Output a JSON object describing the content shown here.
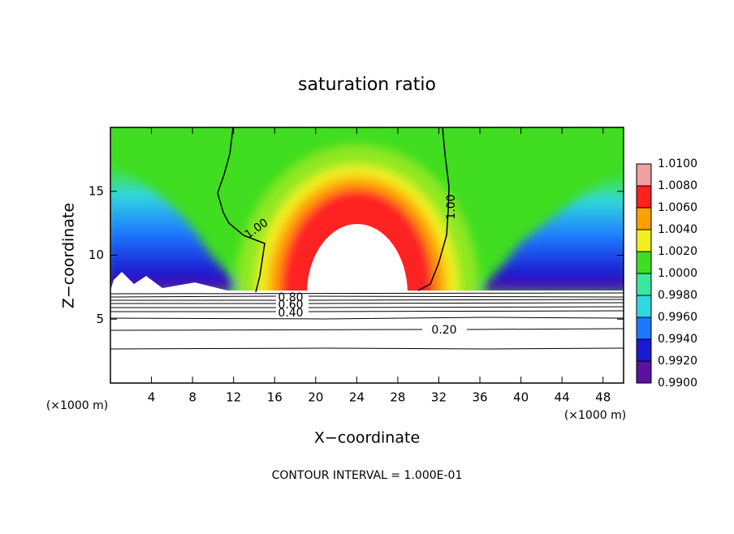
{
  "chart_data": {
    "type": "contour",
    "title": "saturation ratio",
    "x_label": "X−coordinate",
    "y_label": "Z−coordinate",
    "x_unit": "(×1000 m)",
    "y_unit": "(×1000 m)",
    "footer": "CONTOUR INTERVAL = 1.000E-01",
    "xlim": [
      0,
      50
    ],
    "ylim": [
      0,
      20
    ],
    "xticks": [
      4,
      8,
      12,
      16,
      20,
      24,
      28,
      32,
      36,
      40,
      44,
      48
    ],
    "yticks": [
      5,
      10,
      15
    ],
    "contour_labels": [
      "1.00",
      "1.00",
      "0.80",
      "0.60",
      "0.40",
      "0.20"
    ],
    "colorbar": {
      "lim": [
        0.99,
        1.01
      ],
      "ticks": [
        {
          "value": 0.99,
          "label": "0.9900"
        },
        {
          "value": 0.992,
          "label": "0.9920"
        },
        {
          "value": 0.994,
          "label": "0.9940"
        },
        {
          "value": 0.996,
          "label": "0.9960"
        },
        {
          "value": 0.998,
          "label": "0.9980"
        },
        {
          "value": 1.0,
          "label": "1.0000"
        },
        {
          "value": 1.002,
          "label": "1.0020"
        },
        {
          "value": 1.004,
          "label": "1.0040"
        },
        {
          "value": 1.006,
          "label": "1.0060"
        },
        {
          "value": 1.008,
          "label": "1.0080"
        },
        {
          "value": 1.01,
          "label": "1.0100"
        }
      ],
      "colors": [
        "#5a10a0",
        "#1a1ad0",
        "#1e78ff",
        "#30d8e0",
        "#38e8a0",
        "#40dd20",
        "#f0f020",
        "#ffa000",
        "#ff2020",
        "#f0a0a0"
      ]
    }
  }
}
